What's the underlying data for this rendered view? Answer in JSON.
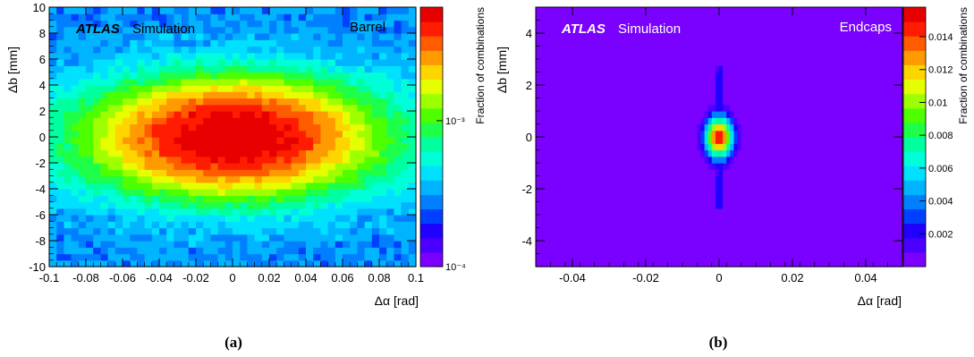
{
  "figure": {
    "subfigure_labels": [
      "(a)",
      "(b)"
    ]
  },
  "chart_data": [
    {
      "type": "heatmap",
      "panel_label": "(a)",
      "experiment": "ATLAS",
      "status": "Simulation",
      "region": "Barrel",
      "xlabel": "Δα [rad]",
      "ylabel": "Δb [mm]",
      "zlabel": "Fraction of combinations",
      "xlim": [
        -0.1,
        0.1
      ],
      "ylim": [
        -10,
        10
      ],
      "zlim": [
        0.0001,
        0.006
      ],
      "zscale": "log",
      "x_bins": 50,
      "y_bins": 40,
      "xticks": [
        -0.1,
        -0.08,
        -0.06,
        -0.04,
        -0.02,
        0,
        0.02,
        0.04,
        0.06,
        0.08,
        0.1
      ],
      "xtick_labels": [
        "-0.1",
        "-0.08",
        "-0.06",
        "-0.04",
        "-0.02",
        "0",
        "0.02",
        "0.04",
        "0.06",
        "0.08",
        "0.1"
      ],
      "yticks": [
        -10,
        -8,
        -6,
        -4,
        -2,
        0,
        2,
        4,
        6,
        8,
        10
      ],
      "ytick_labels": [
        "-10",
        "-8",
        "-6",
        "-4",
        "-2",
        "0",
        "2",
        "4",
        "6",
        "8",
        "10"
      ],
      "zticks": [
        0.0001,
        0.001
      ],
      "ztick_labels": [
        "10⁻⁴",
        "10⁻³"
      ],
      "distribution": {
        "shape": "elliptical peak at origin over broad background",
        "peak": 0.0055,
        "background": 0.0003,
        "sigma_x": 0.035,
        "sigma_y": 2.2
      },
      "colors": [
        "#7a00ff",
        "#4b00ff",
        "#2000ff",
        "#0040ff",
        "#0080ff",
        "#00b4ff",
        "#00e0ff",
        "#00ffd9",
        "#00ff9e",
        "#1eff4a",
        "#4eff00",
        "#9eff00",
        "#e6ff00",
        "#ffd500",
        "#ff9a00",
        "#ff5c00",
        "#ff1c00",
        "#e60000"
      ]
    },
    {
      "type": "heatmap",
      "panel_label": "(b)",
      "experiment": "ATLAS",
      "status": "Simulation",
      "region": "Endcaps",
      "xlabel": "Δα [rad]",
      "ylabel": "Δb [mm]",
      "zlabel": "Fraction of combinations",
      "xlim": [
        -0.05,
        0.05
      ],
      "ylim": [
        -5,
        5
      ],
      "zlim": [
        0,
        0.0158
      ],
      "zscale": "linear",
      "x_bins": 100,
      "y_bins": 40,
      "xticks": [
        -0.04,
        -0.02,
        0,
        0.02,
        0.04
      ],
      "xtick_labels": [
        "-0.04",
        "-0.02",
        "0",
        "0.02",
        "0.04"
      ],
      "yticks": [
        -4,
        -2,
        0,
        2,
        4
      ],
      "ytick_labels": [
        "-4",
        "-2",
        "0",
        "2",
        "4"
      ],
      "zticks": [
        0.002,
        0.004,
        0.006,
        0.008,
        0.01,
        0.012,
        0.014
      ],
      "ztick_labels": [
        "0.002",
        "0.004",
        "0.006",
        "0.008",
        "0.01",
        "0.012",
        "0.014"
      ],
      "distribution": {
        "shape": "compact peak at origin with thin vertical stripe at Δα=0",
        "peak": 0.0152,
        "sigma_x": 0.0025,
        "sigma_y": 0.55,
        "stripe_y_range": [
          -2.8,
          2.8
        ],
        "stripe_level": 0.0022
      },
      "colors": [
        "#7a00ff",
        "#4b00ff",
        "#2000ff",
        "#0040ff",
        "#0080ff",
        "#00b4ff",
        "#00e0ff",
        "#00ffd9",
        "#00ff9e",
        "#1eff4a",
        "#4eff00",
        "#9eff00",
        "#e6ff00",
        "#ffd500",
        "#ff9a00",
        "#ff5c00",
        "#ff1c00",
        "#e60000"
      ]
    }
  ]
}
